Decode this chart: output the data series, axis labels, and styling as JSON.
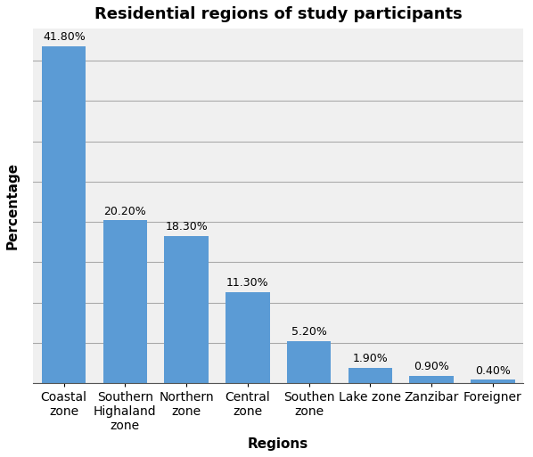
{
  "title": "Residential regions of study participants",
  "categories": [
    "Coastal\nzone",
    "Southern\nHighaland\nzone",
    "Northern\nzone",
    "Central\nzone",
    "Southen\nzone",
    "Lake zone",
    "Zanzibar",
    "Foreigner"
  ],
  "values": [
    41.8,
    20.2,
    18.3,
    11.3,
    5.2,
    1.9,
    0.9,
    0.4
  ],
  "labels": [
    "41.80%",
    "20.20%",
    "18.30%",
    "11.30%",
    "5.20%",
    "1.90%",
    "0.90%",
    "0.40%"
  ],
  "bar_color": "#5b9bd5",
  "xlabel": "Regions",
  "ylabel": "Percentage",
  "ylim": [
    0,
    44
  ],
  "yticks": [
    0,
    5,
    10,
    15,
    20,
    25,
    30,
    35,
    40
  ],
  "title_fontsize": 13,
  "label_fontsize": 11,
  "tick_fontsize": 10,
  "bar_label_fontsize": 9,
  "background_color": "#f0f0f0"
}
